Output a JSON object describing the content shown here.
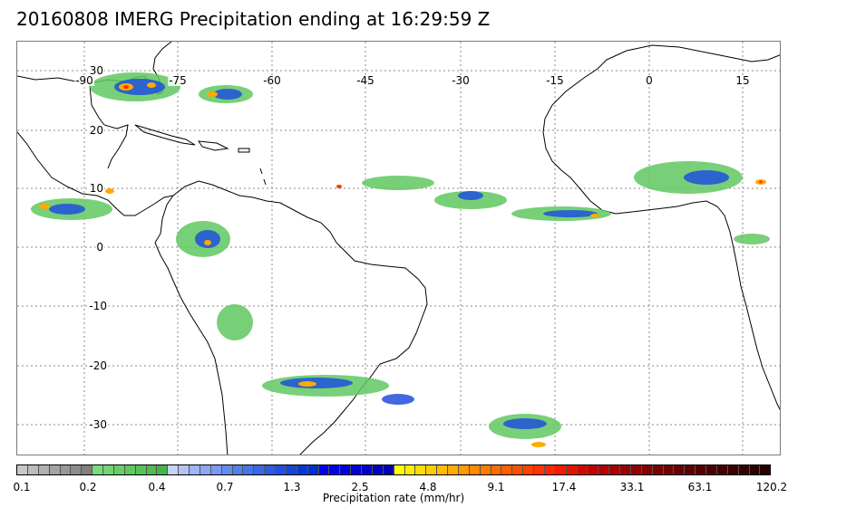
{
  "title": "20160808 IMERG Precipitation ending at 16:29:59 Z",
  "map": {
    "lon_labels": [
      "-90",
      "-75",
      "-60",
      "-45",
      "-30",
      "-15",
      "0",
      "15"
    ],
    "lat_labels": [
      "30",
      "20",
      "10",
      "0",
      "-10",
      "-20",
      "-30"
    ]
  },
  "colorbar": {
    "label": "Precipitation rate (mm/hr)",
    "ticks": [
      "0.1",
      "0.2",
      "0.4",
      "0.7",
      "1.3",
      "2.5",
      "4.8",
      "9.1",
      "17.4",
      "33.1",
      "63.1",
      "120.2"
    ],
    "colors": [
      "#c8c8c8",
      "#bcbcbc",
      "#b0b0b0",
      "#a4a4a4",
      "#989898",
      "#8c8c8c",
      "#808080",
      "#78dc78",
      "#70d670",
      "#68cf68",
      "#60c860",
      "#58c258",
      "#50bb50",
      "#48b448",
      "#c8d2f8",
      "#b4c4f6",
      "#a0b6f4",
      "#8ca8f2",
      "#789af0",
      "#648cee",
      "#5080ec",
      "#4474e8",
      "#3868e4",
      "#2c5ce0",
      "#2050dc",
      "#1444d8",
      "#0838d4",
      "#0030d0",
      "#0000f0",
      "#0000e6",
      "#0000dc",
      "#0000d2",
      "#0000c8",
      "#0000be",
      "#0000b4",
      "#ffff00",
      "#ffee00",
      "#ffdd00",
      "#ffcc00",
      "#ffbb00",
      "#ffaa00",
      "#ff9900",
      "#ff8800",
      "#ff7a00",
      "#ff6c00",
      "#ff5e00",
      "#ff5000",
      "#ff4200",
      "#ff3400",
      "#ff2600",
      "#f01c00",
      "#e01200",
      "#d00800",
      "#c00000",
      "#b40000",
      "#a80000",
      "#9c0000",
      "#900000",
      "#840000",
      "#7a0000",
      "#700000",
      "#660000",
      "#5c0000",
      "#540000",
      "#4c0000",
      "#440000",
      "#3c0000",
      "#340000",
      "#2c0000",
      "#240000"
    ]
  }
}
